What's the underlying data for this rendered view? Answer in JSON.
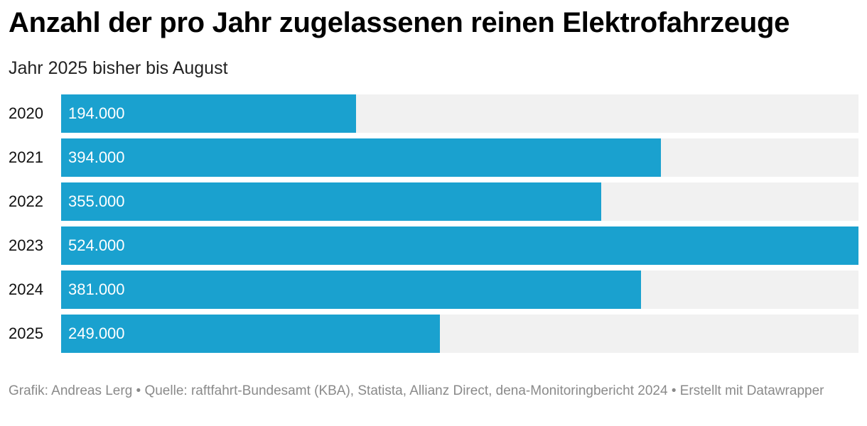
{
  "title": "Anzahl der pro Jahr zugelassenen reinen Elektrofahrzeuge",
  "subtitle": "Jahr 2025 bisher bis August",
  "footer": "Grafik: Andreas Lerg • Quelle: raftfahrt-Bundesamt (KBA), Statista, Allianz Direct, dena-Monitoringbericht 2024 • Erstellt mit Datawrapper",
  "colors": {
    "bar": "#1aa1cf",
    "track": "#f1f1f1"
  },
  "chart_data": {
    "type": "bar",
    "orientation": "horizontal",
    "title": "Anzahl der pro Jahr zugelassenen reinen Elektrofahrzeuge",
    "subtitle": "Jahr 2025 bisher bis August",
    "categories": [
      "2020",
      "2021",
      "2022",
      "2023",
      "2024",
      "2025"
    ],
    "values": [
      194000,
      394000,
      355000,
      524000,
      381000,
      249000
    ],
    "labels": [
      "194.000",
      "394.000",
      "355.000",
      "524.000",
      "381.000",
      "249.000"
    ],
    "xlim": [
      0,
      524000
    ],
    "xlabel": "",
    "ylabel": ""
  }
}
